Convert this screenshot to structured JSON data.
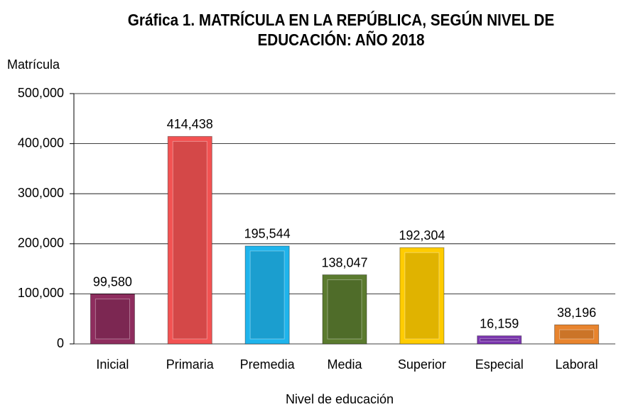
{
  "chart_data": {
    "type": "bar",
    "title": "Gráfica 1. MATRÍCULA EN LA REPÚBLICA, SEGÚN NIVEL DE EDUCACIÓN: AÑO 2018",
    "y_label": "Matrícula",
    "x_label": "Nivel de educación",
    "categories": [
      "Inicial",
      "Primaria",
      "Premedia",
      "Media",
      "Superior",
      "Especial",
      "Laboral"
    ],
    "values": [
      99580,
      414438,
      195544,
      138047,
      192304,
      16159,
      38196
    ],
    "value_labels": [
      "99,580",
      "414,438",
      "195,544",
      "138,047",
      "192,304",
      "16,159",
      "38,196"
    ],
    "colors": [
      "#8e2d5e",
      "#f25252",
      "#1fb4ec",
      "#5b7b2f",
      "#ffcc00",
      "#7b35b0",
      "#e8842e"
    ],
    "ylim": [
      0,
      500000
    ],
    "yticks": [
      0,
      {
        "value": 100000,
        "label": "100,000"
      },
      {
        "value": 200000,
        "label": "200,000"
      },
      {
        "value": 300000,
        "label": "300,000"
      },
      {
        "value": 400000,
        "label": "400,000"
      },
      {
        "value": 500000,
        "label": "500,000"
      }
    ],
    "grid": true
  }
}
